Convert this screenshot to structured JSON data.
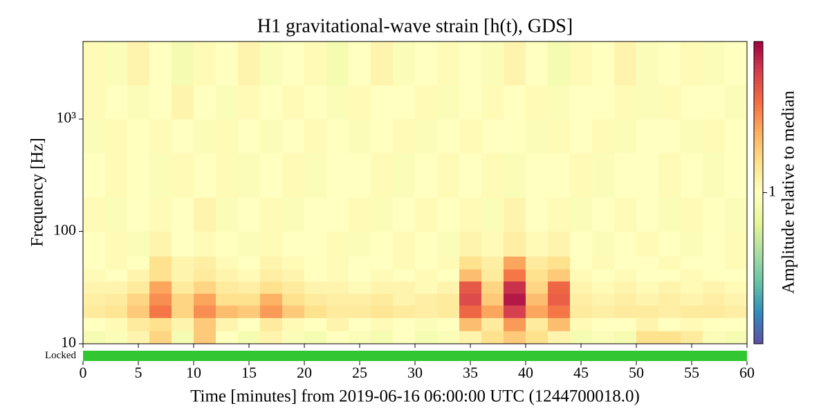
{
  "chart_data": {
    "type": "spectrogram",
    "title": "H1 gravitational-wave strain [h(t), GDS]",
    "xlabel": "Time [minutes] from 2019-06-16 06:00:00 UTC (1244700018.0)",
    "ylabel": "Frequency [Hz]",
    "colorbar_label": "Amplitude relative to median",
    "xlim": [
      0,
      60
    ],
    "xticks": [
      0,
      5,
      10,
      15,
      20,
      25,
      30,
      35,
      40,
      45,
      50,
      55,
      60
    ],
    "ylim": [
      10,
      4900
    ],
    "yscale": "log",
    "yticks": [
      10,
      100,
      {
        "value": 1000,
        "label": "10³"
      }
    ],
    "clim": [
      0.25,
      4
    ],
    "cscale": "log",
    "cticks": [
      1
    ],
    "colormap": "Spectral_r",
    "times": [
      0,
      2,
      4,
      6,
      8,
      10,
      12,
      14,
      16,
      18,
      20,
      22,
      24,
      26,
      28,
      30,
      32,
      34,
      36,
      38,
      40,
      42,
      44,
      46,
      48,
      50,
      52,
      54,
      56,
      58,
      60
    ],
    "frequencies": [
      10,
      13,
      17,
      22,
      28,
      36,
      46,
      60,
      100,
      200,
      500,
      1000,
      2000,
      4900
    ],
    "values": [
      [
        0.9,
        0.95,
        1.1,
        1.4,
        0.9,
        1.5,
        1.0,
        0.9,
        1.1,
        0.95,
        0.9,
        1.0,
        0.95,
        0.9,
        1.0,
        0.9,
        0.95,
        1.1,
        1.3,
        1.5,
        1.3,
        1.1,
        0.9,
        0.95,
        0.9,
        1.3,
        1.3,
        1.2,
        0.95,
        0.9
      ],
      [
        1.0,
        1.05,
        1.2,
        1.3,
        1.1,
        1.5,
        1.1,
        1.0,
        1.2,
        1.05,
        1.0,
        1.1,
        1.0,
        1.05,
        1.0,
        0.95,
        1.0,
        1.6,
        1.2,
        1.9,
        1.2,
        1.6,
        1.05,
        1.0,
        1.0,
        1.1,
        1.0,
        1.05,
        1.0,
        1.0
      ],
      [
        1.2,
        1.25,
        1.5,
        2.2,
        1.4,
        2.0,
        1.6,
        1.5,
        1.9,
        1.5,
        1.3,
        1.2,
        1.2,
        1.25,
        1.2,
        1.15,
        1.2,
        2.4,
        1.8,
        3.0,
        1.8,
        2.2,
        1.2,
        1.15,
        1.2,
        1.2,
        1.15,
        1.2,
        1.2,
        1.15
      ],
      [
        1.15,
        1.2,
        1.4,
        2.0,
        1.4,
        1.8,
        1.3,
        1.3,
        1.7,
        1.3,
        1.2,
        1.15,
        1.15,
        1.2,
        1.1,
        1.15,
        1.2,
        2.8,
        1.5,
        3.6,
        1.6,
        2.5,
        1.15,
        1.1,
        1.15,
        1.1,
        1.15,
        1.1,
        1.15,
        1.1
      ],
      [
        1.1,
        1.1,
        1.2,
        1.8,
        1.2,
        1.4,
        1.2,
        1.15,
        1.3,
        1.2,
        1.1,
        1.1,
        1.05,
        1.1,
        1.1,
        1.05,
        1.1,
        2.6,
        1.4,
        3.2,
        1.4,
        2.4,
        1.1,
        1.05,
        1.1,
        1.05,
        1.1,
        1.05,
        1.1,
        1.05
      ],
      [
        1.05,
        1.0,
        1.1,
        1.3,
        1.1,
        1.2,
        1.1,
        1.05,
        1.15,
        1.1,
        1.0,
        1.05,
        1.0,
        1.05,
        1.0,
        1.05,
        1.0,
        1.6,
        1.2,
        2.2,
        1.3,
        1.5,
        1.05,
        1.0,
        1.05,
        1.0,
        1.0,
        1.05,
        1.0,
        1.0
      ],
      [
        1.0,
        1.05,
        1.0,
        1.3,
        1.1,
        1.15,
        1.05,
        1.0,
        1.1,
        1.05,
        1.0,
        1.05,
        1.0,
        1.0,
        1.05,
        1.0,
        1.05,
        1.3,
        1.15,
        1.8,
        1.2,
        1.3,
        1.0,
        1.05,
        1.0,
        1.0,
        1.05,
        1.0,
        1.0,
        1.05
      ],
      [
        1.0,
        1.05,
        0.95,
        1.1,
        1.0,
        1.05,
        1.0,
        0.95,
        1.05,
        1.0,
        1.0,
        1.05,
        0.95,
        1.0,
        1.05,
        1.0,
        0.95,
        1.1,
        1.05,
        1.15,
        1.05,
        1.1,
        1.0,
        0.95,
        1.0,
        1.05,
        1.0,
        0.95,
        1.0,
        1.05
      ],
      [
        1.05,
        0.95,
        1.0,
        1.05,
        1.0,
        1.1,
        0.95,
        1.0,
        1.05,
        0.95,
        1.0,
        1.0,
        1.05,
        0.95,
        1.0,
        1.05,
        1.0,
        1.05,
        0.95,
        1.1,
        1.0,
        1.05,
        0.95,
        1.0,
        1.05,
        1.0,
        0.95,
        1.05,
        1.0,
        0.95
      ],
      [
        1.0,
        1.05,
        1.0,
        0.95,
        1.05,
        1.0,
        1.05,
        0.95,
        1.0,
        1.05,
        0.95,
        1.0,
        1.0,
        1.05,
        0.95,
        1.0,
        1.05,
        1.0,
        1.05,
        0.95,
        1.0,
        1.0,
        1.05,
        0.95,
        1.0,
        1.0,
        1.05,
        1.0,
        0.95,
        1.0
      ],
      [
        0.95,
        1.05,
        1.0,
        1.05,
        1.0,
        0.95,
        1.05,
        1.0,
        0.95,
        1.0,
        1.05,
        1.0,
        0.95,
        1.0,
        1.05,
        0.95,
        1.0,
        1.05,
        1.0,
        1.0,
        0.95,
        1.05,
        1.0,
        1.05,
        0.95,
        1.0,
        1.0,
        0.95,
        1.05,
        1.0
      ],
      [
        1.05,
        1.0,
        0.95,
        1.0,
        1.1,
        1.0,
        0.95,
        1.05,
        1.0,
        1.05,
        1.0,
        0.95,
        1.05,
        1.0,
        1.0,
        1.05,
        0.95,
        1.0,
        1.05,
        1.0,
        1.05,
        0.95,
        1.0,
        1.0,
        1.05,
        0.95,
        1.05,
        1.0,
        1.0,
        0.95
      ],
      [
        1.05,
        0.95,
        1.1,
        1.0,
        0.9,
        1.05,
        1.0,
        1.1,
        0.95,
        1.0,
        1.05,
        0.9,
        1.0,
        1.1,
        0.95,
        1.0,
        1.05,
        1.0,
        0.95,
        1.1,
        1.0,
        0.9,
        1.05,
        1.0,
        1.1,
        0.95,
        1.0,
        1.05,
        0.95,
        1.0
      ]
    ],
    "segments": [
      {
        "name": "Locked",
        "color": "#33c633",
        "start": 0,
        "end": 60
      }
    ]
  }
}
